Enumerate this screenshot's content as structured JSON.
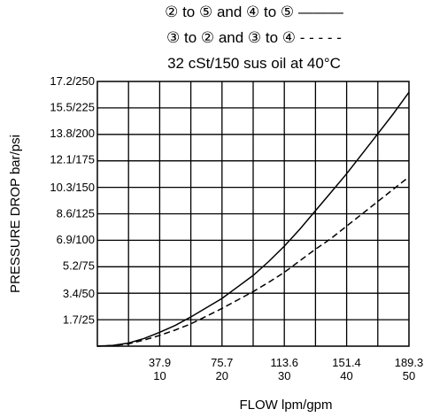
{
  "chart_data": {
    "type": "line",
    "title_lines": [
      "② to ⑤ and ④ to ⑤ ———",
      "③ to ② and ③ to ④ - - - - -",
      "32 cSt/150 sus oil at 40°C"
    ],
    "xlabel": "FLOW lpm/gpm",
    "ylabel": "PRESSURE DROP bar/psi",
    "xlim": [
      0,
      189.3
    ],
    "ylim": [
      0,
      17.2
    ],
    "grid": true,
    "x_tick_values": [
      37.9,
      75.7,
      113.6,
      151.4,
      189.3
    ],
    "x_tick_labels_lpm": [
      "37.9",
      "75.7",
      "113.6",
      "151.4",
      "189.3"
    ],
    "x_tick_labels_gpm": [
      "10",
      "20",
      "30",
      "40",
      "50"
    ],
    "y_tick_values": [
      1.7,
      3.4,
      5.2,
      6.9,
      8.6,
      10.3,
      12.1,
      13.8,
      15.5,
      17.2
    ],
    "y_tick_labels": [
      "1.7/25",
      "3.4/50",
      "5.2/75",
      "6.9/100",
      "8.6/125",
      "10.3/150",
      "12.1/175",
      "13.8/200",
      "15.5/225",
      "17.2/250"
    ],
    "series": [
      {
        "style": "solid",
        "x": [
          0,
          9.5,
          18.9,
          28.4,
          37.9,
          47.3,
          56.8,
          66.3,
          75.7,
          85.2,
          94.7,
          104.1,
          113.6,
          123.0,
          132.5,
          142.0,
          151.4,
          160.9,
          170.4,
          179.8,
          189.3
        ],
        "y": [
          0,
          0.05,
          0.2,
          0.5,
          0.9,
          1.35,
          1.9,
          2.5,
          3.1,
          3.85,
          4.6,
          5.5,
          6.5,
          7.6,
          8.8,
          10.0,
          11.2,
          12.5,
          13.8,
          15.1,
          16.5
        ]
      },
      {
        "style": "dashed",
        "x": [
          0,
          9.5,
          18.9,
          28.4,
          37.9,
          47.3,
          56.8,
          66.3,
          75.7,
          85.2,
          94.7,
          104.1,
          113.6,
          123.0,
          132.5,
          142.0,
          151.4,
          160.9,
          170.4,
          179.8,
          189.3
        ],
        "y": [
          0,
          0.05,
          0.15,
          0.4,
          0.7,
          1.05,
          1.45,
          1.95,
          2.45,
          3.0,
          3.55,
          4.15,
          4.8,
          5.55,
          6.3,
          7.0,
          7.8,
          8.6,
          9.4,
          10.2,
          11.0
        ]
      }
    ]
  }
}
